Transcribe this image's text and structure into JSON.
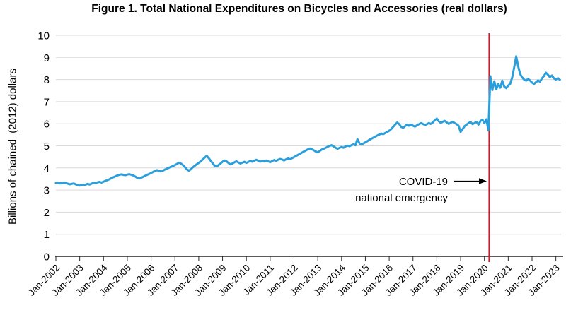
{
  "chart_data": {
    "type": "line",
    "title": "Figure 1. Total National Expenditures on Bicycles and Accessories (real dollars)",
    "ylabel": "Billions of chained  (2012) dollars",
    "ylim": [
      0,
      10
    ],
    "y_ticks": [
      0,
      1,
      2,
      3,
      4,
      5,
      6,
      7,
      8,
      9,
      10
    ],
    "x_tick_labels": [
      "Jan-2002",
      "Jan-2003",
      "Jan-2004",
      "Jan-2005",
      "Jan-2006",
      "Jan-2007",
      "Jan-2008",
      "Jan-2009",
      "Jan-2010",
      "Jan-2011",
      "Jan-2012",
      "Jan-2013",
      "Jan-2014",
      "Jan-2015",
      "Jan-2016",
      "Jan-2017",
      "Jan-2018",
      "Jan-2019",
      "Jan-2020",
      "Jan-2021",
      "Jan-2022",
      "Jan-2023"
    ],
    "grid": "horizontal",
    "series_start": "Jan-2002",
    "series_end": "Mar-2023",
    "frequency": "monthly",
    "line_color": "#2A9FDC",
    "grid_color": "#D9D9D9",
    "axis_color": "#262626",
    "values": [
      3.32,
      3.33,
      3.3,
      3.32,
      3.34,
      3.31,
      3.29,
      3.26,
      3.28,
      3.3,
      3.26,
      3.22,
      3.2,
      3.24,
      3.21,
      3.25,
      3.28,
      3.25,
      3.29,
      3.33,
      3.31,
      3.35,
      3.37,
      3.34,
      3.38,
      3.42,
      3.45,
      3.49,
      3.54,
      3.58,
      3.62,
      3.66,
      3.69,
      3.71,
      3.69,
      3.67,
      3.7,
      3.72,
      3.69,
      3.66,
      3.61,
      3.55,
      3.52,
      3.56,
      3.6,
      3.65,
      3.69,
      3.73,
      3.77,
      3.82,
      3.86,
      3.9,
      3.87,
      3.84,
      3.88,
      3.93,
      3.97,
      4.01,
      4.05,
      4.09,
      4.13,
      4.18,
      4.24,
      4.2,
      4.13,
      4.04,
      3.94,
      3.88,
      3.94,
      4.03,
      4.1,
      4.17,
      4.23,
      4.3,
      4.38,
      4.47,
      4.55,
      4.45,
      4.33,
      4.22,
      4.1,
      4.07,
      4.13,
      4.2,
      4.28,
      4.34,
      4.3,
      4.22,
      4.16,
      4.2,
      4.26,
      4.3,
      4.25,
      4.2,
      4.24,
      4.28,
      4.23,
      4.27,
      4.32,
      4.28,
      4.33,
      4.37,
      4.33,
      4.28,
      4.32,
      4.29,
      4.34,
      4.3,
      4.26,
      4.31,
      4.36,
      4.32,
      4.37,
      4.41,
      4.38,
      4.34,
      4.39,
      4.43,
      4.39,
      4.44,
      4.49,
      4.54,
      4.59,
      4.64,
      4.69,
      4.74,
      4.79,
      4.84,
      4.88,
      4.85,
      4.8,
      4.74,
      4.71,
      4.77,
      4.83,
      4.87,
      4.91,
      4.96,
      5.0,
      5.03,
      4.97,
      4.91,
      4.87,
      4.91,
      4.95,
      4.91,
      4.97,
      5.01,
      4.98,
      5.03,
      5.07,
      5.03,
      5.3,
      5.12,
      5.06,
      5.11,
      5.16,
      5.21,
      5.27,
      5.32,
      5.37,
      5.42,
      5.47,
      5.51,
      5.56,
      5.53,
      5.58,
      5.63,
      5.68,
      5.76,
      5.86,
      5.96,
      6.05,
      5.99,
      5.86,
      5.81,
      5.89,
      5.96,
      5.91,
      5.96,
      5.91,
      5.87,
      5.93,
      5.98,
      6.03,
      5.99,
      5.94,
      5.98,
      6.03,
      5.99,
      6.06,
      6.16,
      6.23,
      6.11,
      6.04,
      6.09,
      6.13,
      6.06,
      5.99,
      6.04,
      6.09,
      6.03,
      5.98,
      5.91,
      5.63,
      5.76,
      5.89,
      5.96,
      6.03,
      6.08,
      5.98,
      6.03,
      6.09,
      5.96,
      6.12,
      6.18,
      6.03,
      6.2,
      5.7,
      8.15,
      7.52,
      7.92,
      7.56,
      7.8,
      7.63,
      7.95,
      7.68,
      7.61,
      7.73,
      7.81,
      8.1,
      8.56,
      9.05,
      8.6,
      8.25,
      8.1,
      8.0,
      7.95,
      8.03,
      7.96,
      7.86,
      7.8,
      7.88,
      7.96,
      7.9,
      8.05,
      8.16,
      8.31,
      8.22,
      8.11,
      8.18,
      8.06,
      8.0,
      8.06,
      7.99
    ],
    "annotation": {
      "line1": "COVID-19",
      "line2": "national emergency",
      "vline_month": "Mar-2020",
      "vline_month_index": 218.4,
      "vline_color": "#BE1E2D"
    }
  }
}
